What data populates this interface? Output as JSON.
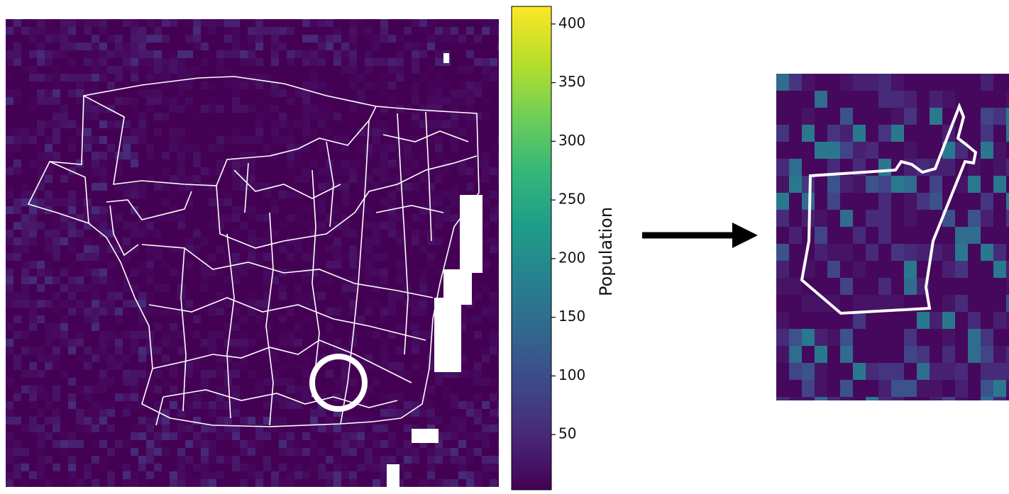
{
  "colorbar": {
    "label": "Population",
    "lim": [
      3,
      415
    ],
    "ticks": [
      50,
      100,
      150,
      200,
      250,
      300,
      350,
      400
    ]
  }
}
